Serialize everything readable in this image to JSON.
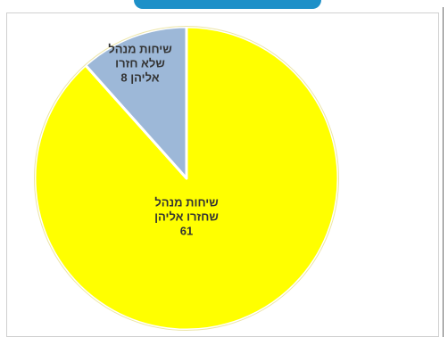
{
  "chart_data": {
    "type": "pie",
    "slices": [
      {
        "label_lines": [
          "שיחות מנהל",
          "שחזרו אליהן",
          "61"
        ],
        "name": "שיחות מנהל שחזרו אליהן",
        "value": 61,
        "color": "#FFFF00",
        "stroke": "#E0C800"
      },
      {
        "label_lines": [
          "שיחות מנהל",
          "שלא חזרו",
          "אליהן  8"
        ],
        "name": "שיחות מנהל שלא חזרו אליהן",
        "value": 8,
        "color": "#9DB8D8",
        "stroke": "#FFFFFF"
      }
    ],
    "title": "",
    "legend": "none"
  },
  "colors": {
    "top_bar": "#1E90C8",
    "border": "#D0D0D0"
  }
}
